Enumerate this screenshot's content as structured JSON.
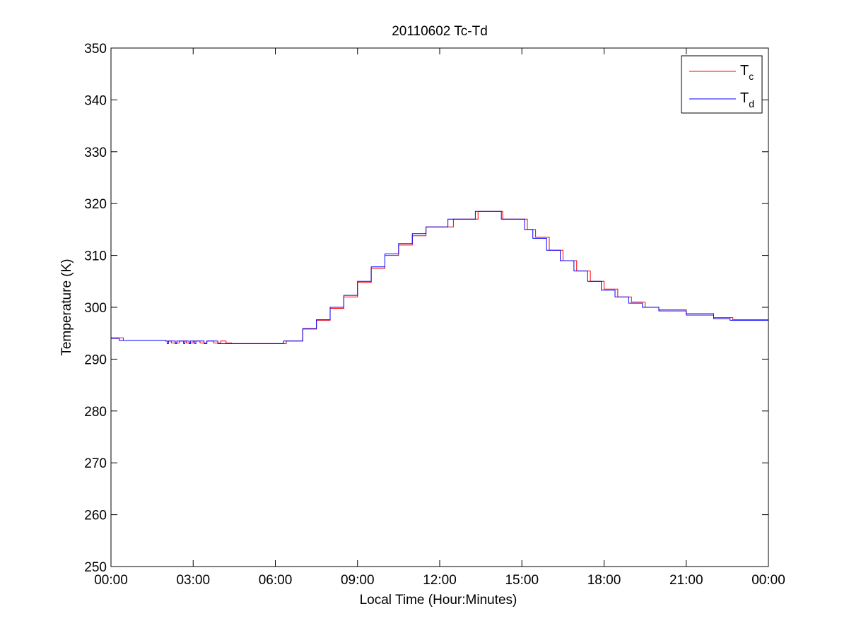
{
  "chart_data": {
    "type": "line",
    "title": "20110602 Tc-Td",
    "xlabel": "Local Time (Hour:Minutes)",
    "ylabel": "Temperature (K)",
    "xlim": [
      0,
      24
    ],
    "ylim": [
      250,
      350
    ],
    "x_tick_values": [
      0,
      3,
      6,
      9,
      12,
      15,
      18,
      21,
      24
    ],
    "x_ticks": [
      "00:00",
      "03:00",
      "06:00",
      "09:00",
      "12:00",
      "15:00",
      "18:00",
      "21:00",
      "00:00"
    ],
    "y_ticks": [
      250,
      260,
      270,
      280,
      290,
      300,
      310,
      320,
      330,
      340,
      350
    ],
    "grid": false,
    "legend_position": "top-right",
    "series": [
      {
        "name": "T",
        "subscript": "c",
        "color": "#ff0000",
        "points": [
          [
            0,
            294.1
          ],
          [
            0.45,
            293.6
          ],
          [
            2.0,
            293.5
          ],
          [
            2.2,
            293.1
          ],
          [
            2.5,
            293.5
          ],
          [
            2.75,
            293.1
          ],
          [
            3.0,
            293.5
          ],
          [
            3.25,
            293.1
          ],
          [
            3.5,
            293.5
          ],
          [
            3.75,
            293.1
          ],
          [
            4.0,
            293.5
          ],
          [
            4.2,
            293.1
          ],
          [
            4.4,
            293.0
          ],
          [
            5.8,
            293.0
          ],
          [
            6.4,
            293.5
          ],
          [
            7.0,
            295.8
          ],
          [
            7.5,
            297.5
          ],
          [
            8.0,
            299.8
          ],
          [
            8.5,
            302.0
          ],
          [
            9.0,
            304.8
          ],
          [
            9.5,
            307.5
          ],
          [
            10.0,
            310.0
          ],
          [
            10.5,
            312.0
          ],
          [
            11.0,
            313.8
          ],
          [
            11.5,
            315.5
          ],
          [
            12.5,
            317.0
          ],
          [
            13.4,
            318.5
          ],
          [
            14.3,
            317.0
          ],
          [
            14.9,
            317.0
          ],
          [
            15.2,
            315.0
          ],
          [
            15.5,
            313.5
          ],
          [
            16.0,
            311.0
          ],
          [
            16.5,
            309.0
          ],
          [
            17.0,
            307.0
          ],
          [
            17.5,
            305.0
          ],
          [
            18.0,
            303.5
          ],
          [
            18.5,
            302.0
          ],
          [
            19.0,
            301.0
          ],
          [
            19.5,
            300.0
          ],
          [
            20.0,
            299.5
          ],
          [
            21.0,
            298.8
          ],
          [
            22.0,
            298.0
          ],
          [
            22.7,
            297.6
          ],
          [
            24.0,
            297.1
          ]
        ]
      },
      {
        "name": "T",
        "subscript": "d",
        "color": "#0000ff",
        "points": [
          [
            0,
            294.0
          ],
          [
            0.3,
            293.6
          ],
          [
            2.0,
            293.5
          ],
          [
            2.05,
            293.0
          ],
          [
            2.1,
            293.5
          ],
          [
            2.35,
            293.0
          ],
          [
            2.4,
            293.5
          ],
          [
            2.65,
            293.0
          ],
          [
            2.7,
            293.5
          ],
          [
            2.85,
            293.0
          ],
          [
            2.9,
            293.5
          ],
          [
            3.05,
            293.0
          ],
          [
            3.1,
            293.5
          ],
          [
            3.4,
            293.0
          ],
          [
            3.5,
            293.5
          ],
          [
            3.9,
            293.0
          ],
          [
            5.8,
            293.0
          ],
          [
            6.3,
            293.5
          ],
          [
            7.0,
            295.9
          ],
          [
            7.5,
            297.6
          ],
          [
            8.0,
            300.0
          ],
          [
            8.5,
            302.3
          ],
          [
            9.0,
            305.0
          ],
          [
            9.5,
            307.8
          ],
          [
            10.0,
            310.3
          ],
          [
            10.5,
            312.3
          ],
          [
            11.0,
            314.2
          ],
          [
            11.5,
            315.5
          ],
          [
            12.3,
            317.0
          ],
          [
            13.3,
            318.5
          ],
          [
            14.25,
            317.0
          ],
          [
            14.8,
            317.0
          ],
          [
            15.1,
            315.0
          ],
          [
            15.4,
            313.3
          ],
          [
            15.9,
            311.0
          ],
          [
            16.4,
            309.0
          ],
          [
            16.9,
            307.0
          ],
          [
            17.4,
            305.0
          ],
          [
            17.9,
            303.3
          ],
          [
            18.4,
            302.0
          ],
          [
            18.9,
            300.8
          ],
          [
            19.4,
            300.0
          ],
          [
            20.0,
            299.3
          ],
          [
            21.0,
            298.5
          ],
          [
            22.0,
            297.8
          ],
          [
            22.6,
            297.5
          ],
          [
            24.0,
            296.8
          ]
        ]
      }
    ]
  }
}
